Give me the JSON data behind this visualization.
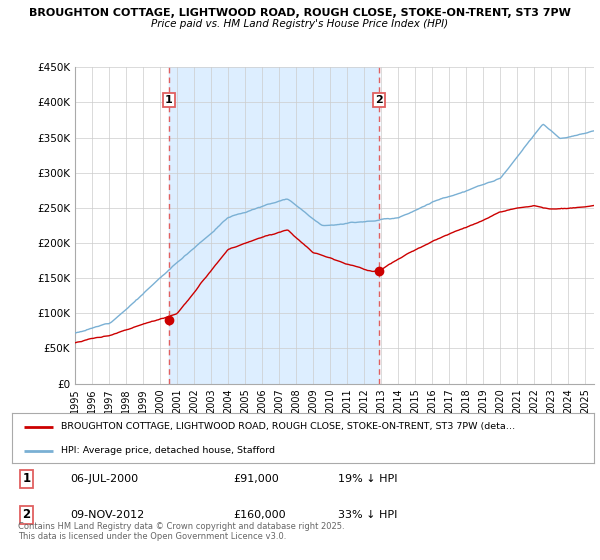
{
  "title1": "BROUGHTON COTTAGE, LIGHTWOOD ROAD, ROUGH CLOSE, STOKE-ON-TRENT, ST3 7PW",
  "title2": "Price paid vs. HM Land Registry's House Price Index (HPI)",
  "ylim": [
    0,
    450000
  ],
  "xlim_start": 1995.0,
  "xlim_end": 2025.5,
  "yticks": [
    0,
    50000,
    100000,
    150000,
    200000,
    250000,
    300000,
    350000,
    400000,
    450000
  ],
  "ytick_labels": [
    "£0",
    "£50K",
    "£100K",
    "£150K",
    "£200K",
    "£250K",
    "£300K",
    "£350K",
    "£400K",
    "£450K"
  ],
  "xticks": [
    1995,
    1996,
    1997,
    1998,
    1999,
    2000,
    2001,
    2002,
    2003,
    2004,
    2005,
    2006,
    2007,
    2008,
    2009,
    2010,
    2011,
    2012,
    2013,
    2014,
    2015,
    2016,
    2017,
    2018,
    2019,
    2020,
    2021,
    2022,
    2023,
    2024,
    2025
  ],
  "purchase1_x": 2000.52,
  "purchase1_y": 91000,
  "purchase1_label": "1",
  "purchase1_date": "06-JUL-2000",
  "purchase1_price": "£91,000",
  "purchase1_hpi": "19% ↓ HPI",
  "purchase2_x": 2012.86,
  "purchase2_y": 160000,
  "purchase2_label": "2",
  "purchase2_date": "09-NOV-2012",
  "purchase2_price": "£160,000",
  "purchase2_hpi": "33% ↓ HPI",
  "vline_color": "#e06060",
  "shade_color": "#ddeeff",
  "property_color": "#cc0000",
  "hpi_color": "#7ab0d4",
  "legend_label1": "BROUGHTON COTTAGE, LIGHTWOOD ROAD, ROUGH CLOSE, STOKE-ON-TRENT, ST3 7PW (deta…",
  "legend_label2": "HPI: Average price, detached house, Stafford",
  "footnote": "Contains HM Land Registry data © Crown copyright and database right 2025.\nThis data is licensed under the Open Government Licence v3.0.",
  "background_color": "#ffffff",
  "grid_color": "#cccccc"
}
